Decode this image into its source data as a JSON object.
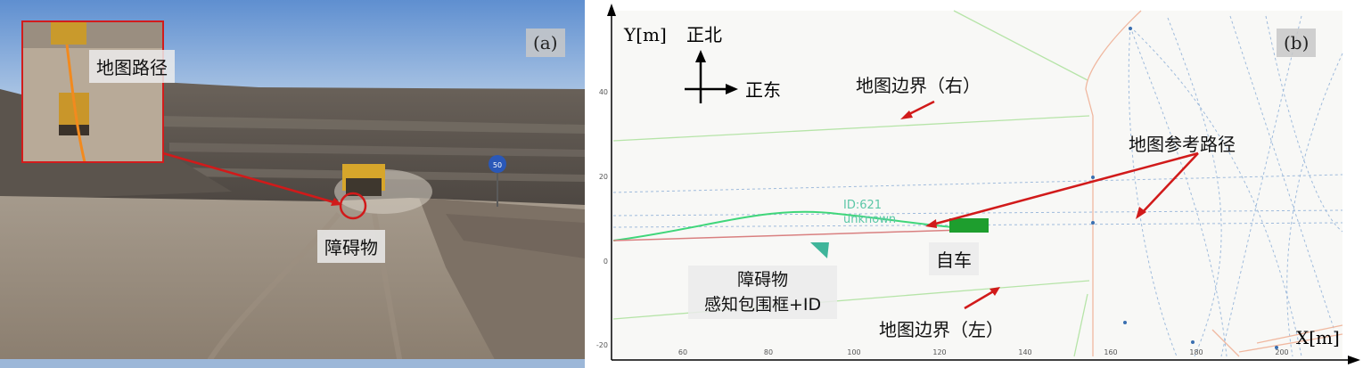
{
  "panel_a": {
    "tag": "(a)",
    "inset_label": "地图路径",
    "obstacle_label": "障碍物",
    "sign_text": "50"
  },
  "panel_b": {
    "tag": "(b)",
    "axis_y_label": "Y[m]",
    "axis_x_label": "X[m]",
    "north_label": "正北",
    "east_label": "正东",
    "boundary_right_label": "地图边界（右）",
    "boundary_left_label": "地图边界（左）",
    "reference_path_label": "地图参考路径",
    "ego_label": "自车",
    "obstacle_label_line1": "障碍物",
    "obstacle_label_line2": "感知包围框+ID",
    "track_id": "ID:621",
    "track_class": "unknown",
    "x_ticks": [
      "60",
      "80",
      "100",
      "120",
      "140",
      "160",
      "180",
      "200"
    ],
    "y_ticks": [
      "40",
      "20",
      "0",
      "-20"
    ]
  },
  "colors": {
    "arrow_red": "#d11a1a",
    "ego_green": "#1e9e2e",
    "path_green": "#3fd67a",
    "boundary_green": "#b6e4a8",
    "reference_blue": "#9fbbdc",
    "obstacle_teal": "#3fb59a"
  }
}
